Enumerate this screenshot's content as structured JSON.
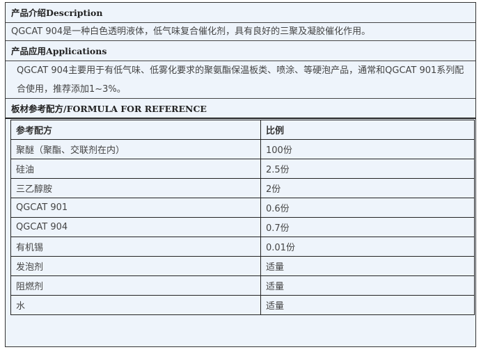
{
  "sections": {
    "description": {
      "heading": "产品介绍Description",
      "text": "QGCAT 904是一种白色透明液体，低气味复合催化剂，具有良好的三聚及凝胶催化作用。"
    },
    "applications": {
      "heading": "产品应用Applications",
      "text": "QGCAT 904主要用于有低气味、低雾化要求的聚氨酯保温板类、喷涂、等硬泡产品，通常和QGCAT 901系列配合使用，推荐添加1~3%。"
    },
    "formula": {
      "heading": "板材参考配方/FORMULA FOR REFERENCE",
      "columns": [
        "参考配方",
        "比例"
      ],
      "rows": [
        [
          "聚醚（聚酯、交联剂在内）",
          "100份"
        ],
        [
          "硅油",
          "2.5份"
        ],
        [
          "三乙醇胺",
          "2份"
        ],
        [
          "QGCAT 901",
          "0.6份"
        ],
        [
          "QGCAT 904",
          "0.7份"
        ],
        [
          "有机锡",
          "0.01份"
        ],
        [
          "发泡剂",
          "适量"
        ],
        [
          "阻燃剂",
          "适量"
        ],
        [
          "水",
          "适量"
        ]
      ]
    }
  },
  "colors": {
    "background": "#eef4fb",
    "border": "#222222"
  }
}
